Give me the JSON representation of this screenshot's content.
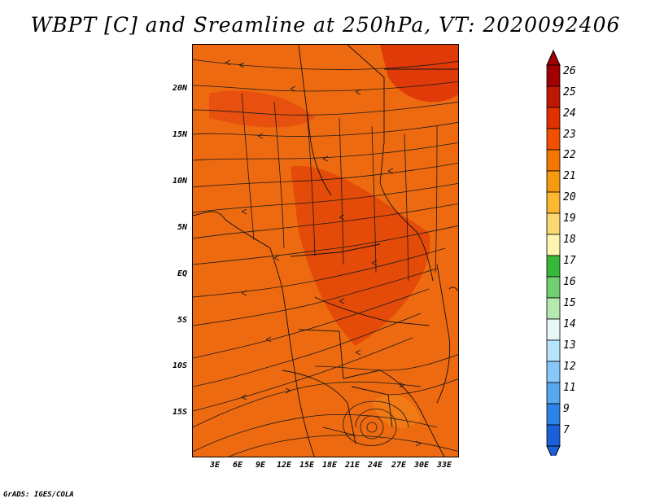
{
  "title": "WBPT [C] and Sreamline at 250hPa, VT: 2020092406",
  "footer": "GrADS: IGES/COLA",
  "map": {
    "fill_color": "#e85a0a",
    "line_color": "#1a1a1a",
    "x_axis_labels": [
      "3E",
      "6E",
      "9E",
      "12E",
      "15E",
      "18E",
      "21E",
      "24E",
      "27E",
      "30E",
      "33E"
    ],
    "y_axis_labels": [
      "20N",
      "15N",
      "10N",
      "5N",
      "EQ",
      "5S",
      "10S",
      "15S"
    ]
  },
  "colorbar": {
    "labels": [
      "26",
      "25",
      "24",
      "23",
      "22",
      "21",
      "20",
      "19",
      "18",
      "17",
      "16",
      "15",
      "14",
      "13",
      "12",
      "11",
      "9",
      "7"
    ],
    "colors": [
      "#a00000",
      "#c01800",
      "#e03000",
      "#f05000",
      "#f47800",
      "#f89a10",
      "#fcb830",
      "#fcd870",
      "#fef4b0",
      "#38b838",
      "#70d070",
      "#b4eab0",
      "#e8f8f8",
      "#b8e4fc",
      "#88c8f8",
      "#58a8f0",
      "#2c84e8",
      "#1a60d8"
    ]
  }
}
